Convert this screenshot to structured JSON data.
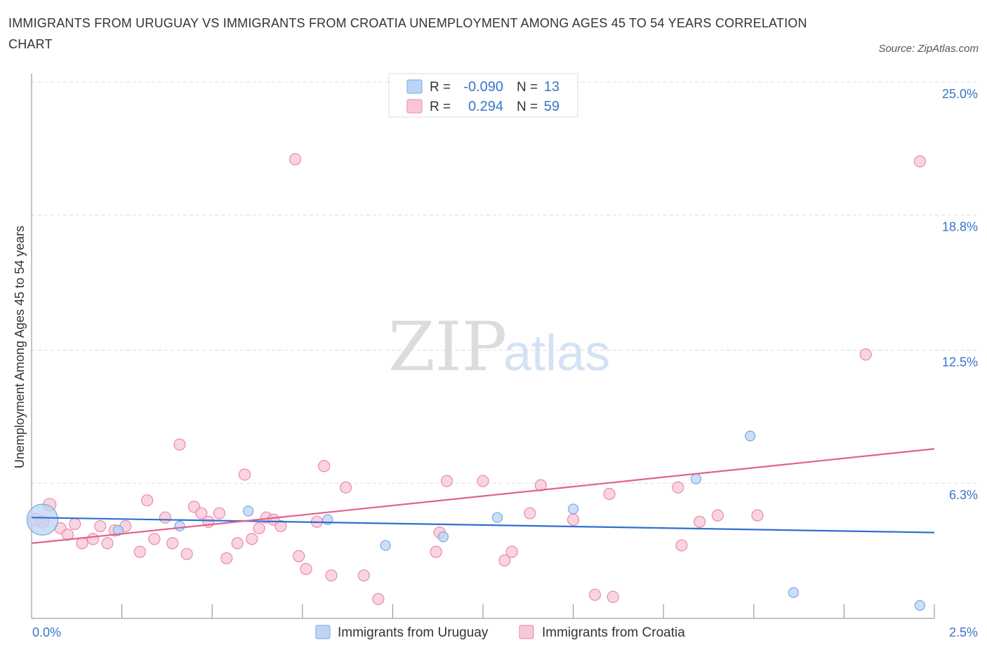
{
  "title": "IMMIGRANTS FROM URUGUAY VS IMMIGRANTS FROM CROATIA UNEMPLOYMENT AMONG AGES 45 TO 54 YEARS CORRELATION CHART",
  "source": "Source: ZipAtlas.com",
  "watermark": {
    "zip": "ZIP",
    "atlas": "atlas"
  },
  "colors": {
    "uruguay_fill": "#bcd4f5",
    "uruguay_stroke": "#7aa6e0",
    "uruguay_line": "#2f6fd0",
    "croatia_fill": "#f8c6d7",
    "croatia_stroke": "#e98aab",
    "croatia_line": "#e0628e",
    "tick_text": "#3a74c8",
    "grid": "#dddddd"
  },
  "legend": {
    "rows": [
      {
        "r_label": "R =",
        "r_value": "-0.090",
        "n_label": "N =",
        "n_value": "13"
      },
      {
        "r_label": "R =",
        "r_value": "0.294",
        "n_label": "N =",
        "n_value": "59"
      }
    ]
  },
  "chart_data": {
    "type": "scatter",
    "xlabel": "",
    "ylabel": "Unemployment Among Ages 45 to 54 years",
    "xlim": [
      0,
      2.5
    ],
    "ylim": [
      0,
      25
    ],
    "x_tick_labels": [
      "0.0%",
      "2.5%"
    ],
    "y_ticks": [
      6.3,
      12.5,
      18.8,
      25.0
    ],
    "y_tick_labels": [
      "6.3%",
      "12.5%",
      "18.8%",
      "25.0%"
    ],
    "grid": true,
    "legend_position": "bottom",
    "series": [
      {
        "name": "Immigrants from Uruguay",
        "points": [
          [
            0.03,
            4.6,
            22
          ],
          [
            0.24,
            4.1,
            7
          ],
          [
            0.41,
            4.3,
            7
          ],
          [
            0.6,
            5.0,
            7
          ],
          [
            0.82,
            4.6,
            7
          ],
          [
            0.98,
            3.4,
            7
          ],
          [
            1.14,
            3.8,
            7
          ],
          [
            1.29,
            4.7,
            7
          ],
          [
            1.5,
            5.1,
            7
          ],
          [
            1.84,
            6.5,
            7
          ],
          [
            1.99,
            8.5,
            7
          ],
          [
            2.11,
            1.2,
            7
          ],
          [
            2.46,
            0.6,
            7
          ]
        ],
        "trend": [
          [
            0.0,
            4.7
          ],
          [
            2.5,
            4.0
          ]
        ]
      },
      {
        "name": "Immigrants from Croatia",
        "points": [
          [
            0.01,
            4.6,
            9
          ],
          [
            0.03,
            4.5,
            9
          ],
          [
            0.05,
            5.3,
            9
          ],
          [
            0.08,
            4.2,
            8
          ],
          [
            0.1,
            3.9,
            8
          ],
          [
            0.12,
            4.4,
            8
          ],
          [
            0.14,
            3.5,
            8
          ],
          [
            0.17,
            3.7,
            8
          ],
          [
            0.19,
            4.3,
            8
          ],
          [
            0.21,
            3.5,
            8
          ],
          [
            0.23,
            4.1,
            8
          ],
          [
            0.26,
            4.3,
            8
          ],
          [
            0.3,
            3.1,
            8
          ],
          [
            0.32,
            5.5,
            8
          ],
          [
            0.34,
            3.7,
            8
          ],
          [
            0.37,
            4.7,
            8
          ],
          [
            0.39,
            3.5,
            8
          ],
          [
            0.41,
            8.1,
            8
          ],
          [
            0.43,
            3.0,
            8
          ],
          [
            0.45,
            5.2,
            8
          ],
          [
            0.47,
            4.9,
            8
          ],
          [
            0.49,
            4.5,
            8
          ],
          [
            0.52,
            4.9,
            8
          ],
          [
            0.54,
            2.8,
            8
          ],
          [
            0.57,
            3.5,
            8
          ],
          [
            0.59,
            6.7,
            8
          ],
          [
            0.61,
            3.7,
            8
          ],
          [
            0.63,
            4.2,
            8
          ],
          [
            0.65,
            4.7,
            8
          ],
          [
            0.67,
            4.6,
            8
          ],
          [
            0.69,
            4.3,
            8
          ],
          [
            0.73,
            21.4,
            8
          ],
          [
            0.74,
            2.9,
            8
          ],
          [
            0.76,
            2.3,
            8
          ],
          [
            0.79,
            4.5,
            8
          ],
          [
            0.81,
            7.1,
            8
          ],
          [
            0.83,
            2.0,
            8
          ],
          [
            0.87,
            6.1,
            8
          ],
          [
            0.92,
            2.0,
            8
          ],
          [
            0.96,
            0.9,
            8
          ],
          [
            1.12,
            3.1,
            8
          ],
          [
            1.13,
            4.0,
            8
          ],
          [
            1.15,
            6.4,
            8
          ],
          [
            1.25,
            6.4,
            8
          ],
          [
            1.31,
            2.7,
            8
          ],
          [
            1.33,
            3.1,
            8
          ],
          [
            1.38,
            4.9,
            8
          ],
          [
            1.41,
            6.2,
            8
          ],
          [
            1.5,
            4.6,
            8
          ],
          [
            1.56,
            1.1,
            8
          ],
          [
            1.6,
            5.8,
            8
          ],
          [
            1.61,
            1.0,
            8
          ],
          [
            1.79,
            6.1,
            8
          ],
          [
            1.8,
            3.4,
            8
          ],
          [
            1.85,
            4.5,
            8
          ],
          [
            1.9,
            4.8,
            8
          ],
          [
            2.01,
            4.8,
            8
          ],
          [
            2.31,
            12.3,
            8
          ],
          [
            2.46,
            21.3,
            8
          ]
        ],
        "trend": [
          [
            0.0,
            3.5
          ],
          [
            2.5,
            7.9
          ]
        ]
      }
    ]
  }
}
